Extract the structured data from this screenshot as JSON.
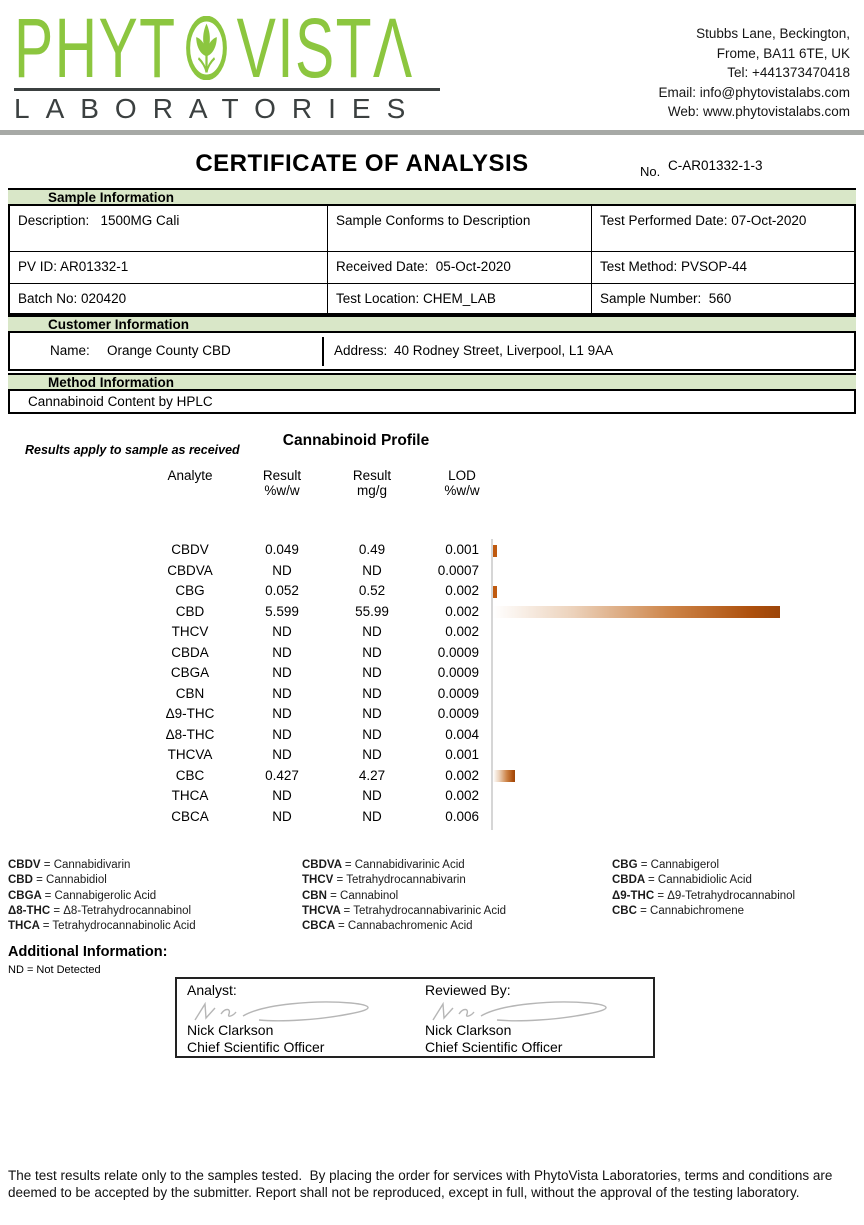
{
  "colors": {
    "brand_green": "#8cc63f",
    "dark_gray": "#3b4040",
    "section_header_bg": "#d9e7c8",
    "bar_dark": "#9c4509",
    "header_divider_gray": "#a7a9a6"
  },
  "header": {
    "logo": {
      "word_part1": "PHYT",
      "word_part2": "VISTΛ",
      "subtitle": "LABORATORIES"
    },
    "contact_lines": [
      "Stubbs Lane, Beckington,",
      "Frome, BA11 6TE, UK",
      "Tel: +441373470418",
      "Email: info@phytovistalabs.com",
      "Web: www.phytovistalabs.com"
    ]
  },
  "certificate": {
    "title": "CERTIFICATE OF ANALYSIS",
    "number_label": "No.",
    "number": "C-AR01332-1-3"
  },
  "sample_info": {
    "section_title": "Sample Information",
    "rows": [
      [
        "Description:   1500MG Cali",
        "Sample Conforms to Description",
        "Test Performed Date: 07-Oct-2020"
      ],
      [
        "PV ID: AR01332-1",
        "Received Date:  05-Oct-2020",
        "Test Method: PVSOP-44"
      ],
      [
        "Batch No: 020420",
        "Test Location: CHEM_LAB",
        "Sample Number:  560"
      ]
    ]
  },
  "customer_info": {
    "section_title": "Customer Information",
    "name_label": "Name:",
    "name": "Orange County CBD",
    "address_label": "Address:",
    "address": "40 Rodney Street, Liverpool, L1 9AA"
  },
  "method_info": {
    "section_title": "Method Information",
    "method": "Cannabinoid Content by HPLC"
  },
  "cannabinoid_profile": {
    "title": "Cannabinoid Profile",
    "note": "Results apply to sample as received",
    "columns": [
      {
        "label": "Analyte",
        "unit": ""
      },
      {
        "label": "Result",
        "unit": "%w/w"
      },
      {
        "label": "Result",
        "unit": "mg/g"
      },
      {
        "label": "LOD",
        "unit": "%w/w"
      }
    ],
    "rows": [
      {
        "analyte": "CBDV",
        "result_pct_ww": "0.049",
        "result_mg_g": "0.49",
        "lod_pct_ww": "0.001"
      },
      {
        "analyte": "CBDVA",
        "result_pct_ww": "ND",
        "result_mg_g": "ND",
        "lod_pct_ww": "0.0007"
      },
      {
        "analyte": "CBG",
        "result_pct_ww": "0.052",
        "result_mg_g": "0.52",
        "lod_pct_ww": "0.002"
      },
      {
        "analyte": "CBD",
        "result_pct_ww": "5.599",
        "result_mg_g": "55.99",
        "lod_pct_ww": "0.002"
      },
      {
        "analyte": "THCV",
        "result_pct_ww": "ND",
        "result_mg_g": "ND",
        "lod_pct_ww": "0.002"
      },
      {
        "analyte": "CBDA",
        "result_pct_ww": "ND",
        "result_mg_g": "ND",
        "lod_pct_ww": "0.0009"
      },
      {
        "analyte": "CBGA",
        "result_pct_ww": "ND",
        "result_mg_g": "ND",
        "lod_pct_ww": "0.0009"
      },
      {
        "analyte": "CBN",
        "result_pct_ww": "ND",
        "result_mg_g": "ND",
        "lod_pct_ww": "0.0009"
      },
      {
        "analyte": "Δ9-THC",
        "result_pct_ww": "ND",
        "result_mg_g": "ND",
        "lod_pct_ww": "0.0009"
      },
      {
        "analyte": "Δ8-THC",
        "result_pct_ww": "ND",
        "result_mg_g": "ND",
        "lod_pct_ww": "0.004"
      },
      {
        "analyte": "THCVA",
        "result_pct_ww": "ND",
        "result_mg_g": "ND",
        "lod_pct_ww": "0.001"
      },
      {
        "analyte": "CBC",
        "result_pct_ww": "0.427",
        "result_mg_g": "4.27",
        "lod_pct_ww": "0.002"
      },
      {
        "analyte": "THCA",
        "result_pct_ww": "ND",
        "result_mg_g": "ND",
        "lod_pct_ww": "0.002"
      },
      {
        "analyte": "CBCA",
        "result_pct_ww": "ND",
        "result_mg_g": "ND",
        "lod_pct_ww": "0.006"
      }
    ]
  },
  "chart_data": {
    "type": "bar",
    "orientation": "horizontal",
    "title": "Cannabinoid Profile",
    "categories": [
      "CBDV",
      "CBDVA",
      "CBG",
      "CBD",
      "THCV",
      "CBDA",
      "CBGA",
      "CBN",
      "Δ9-THC",
      "Δ8-THC",
      "THCVA",
      "CBC",
      "THCA",
      "CBCA"
    ],
    "values": [
      0.049,
      0,
      0.052,
      5.599,
      0,
      0,
      0,
      0,
      0,
      0,
      0,
      0.427,
      0,
      0
    ],
    "value_unit": "%w/w",
    "xlim": [
      0,
      5.599
    ],
    "grid": false,
    "legend_position": "none"
  },
  "legend": {
    "columns": [
      [
        {
          "abbr": "CBDV",
          "definition": "Cannabidivarin"
        },
        {
          "abbr": "CBD",
          "definition": "Cannabidiol"
        },
        {
          "abbr": "CBGA",
          "definition": "Cannabigerolic Acid"
        },
        {
          "abbr": "Δ8-THC",
          "definition": "Δ8-Tetrahydrocannabinol"
        },
        {
          "abbr": "THCA",
          "definition": "Tetrahydrocannabinolic Acid"
        }
      ],
      [
        {
          "abbr": "CBDVA",
          "definition": "Cannabidivarinic Acid"
        },
        {
          "abbr": "THCV",
          "definition": "Tetrahydrocannabivarin"
        },
        {
          "abbr": "CBN",
          "definition": "Cannabinol"
        },
        {
          "abbr": "THCVA",
          "definition": "Tetrahydrocannabivarinic Acid"
        },
        {
          "abbr": "CBCA",
          "definition": "Cannabachromenic Acid"
        }
      ],
      [
        {
          "abbr": "CBG",
          "definition": "Cannabigerol"
        },
        {
          "abbr": "CBDA",
          "definition": "Cannabidiolic Acid"
        },
        {
          "abbr": "Δ9-THC",
          "definition": "Δ9-Tetrahydrocannabinol"
        },
        {
          "abbr": "CBC",
          "definition": "Cannabichromene"
        }
      ]
    ]
  },
  "additional_info": {
    "title": "Additional Information:",
    "note": "ND = Not Detected"
  },
  "signatures": {
    "analyst_label": "Analyst:",
    "analyst_name": "Nick Clarkson",
    "analyst_title": "Chief Scientific Officer",
    "reviewed_label": "Reviewed By:",
    "reviewer_name": "Nick Clarkson",
    "reviewer_title": "Chief Scientific Officer"
  },
  "footer": {
    "disclaimer": "The test results relate only to the samples tested.  By placing the order for services with PhytoVista Laboratories, terms and conditions are deemed to be accepted by the submitter. Report shall not be reproduced, except in full, without the approval of the testing laboratory."
  }
}
